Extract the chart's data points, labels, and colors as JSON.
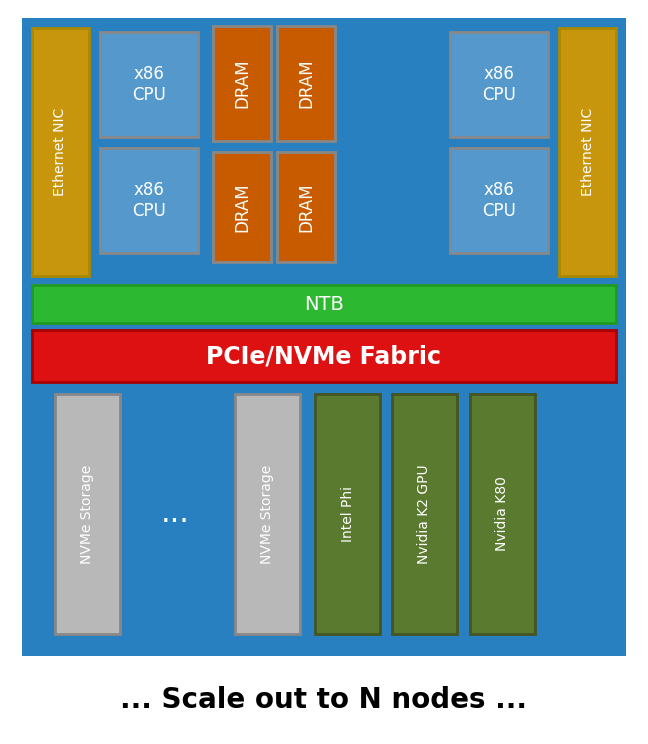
{
  "bg_color": "#2980c0",
  "outer_bg": "#ffffff",
  "colors": {
    "gold": "#c8960c",
    "blue_cpu": "#5599cc",
    "orange_dram": "#c85a00",
    "gray_storage": "#b8b8b8",
    "green_ntb": "#2db832",
    "red_pcie": "#dd1111",
    "dark_green": "#5a7a30"
  },
  "bottom_text": "... Scale out to N nodes ...",
  "ntb_label": "NTB",
  "pcie_label": "PCIe/NVMe Fabric",
  "dots_label": "..."
}
